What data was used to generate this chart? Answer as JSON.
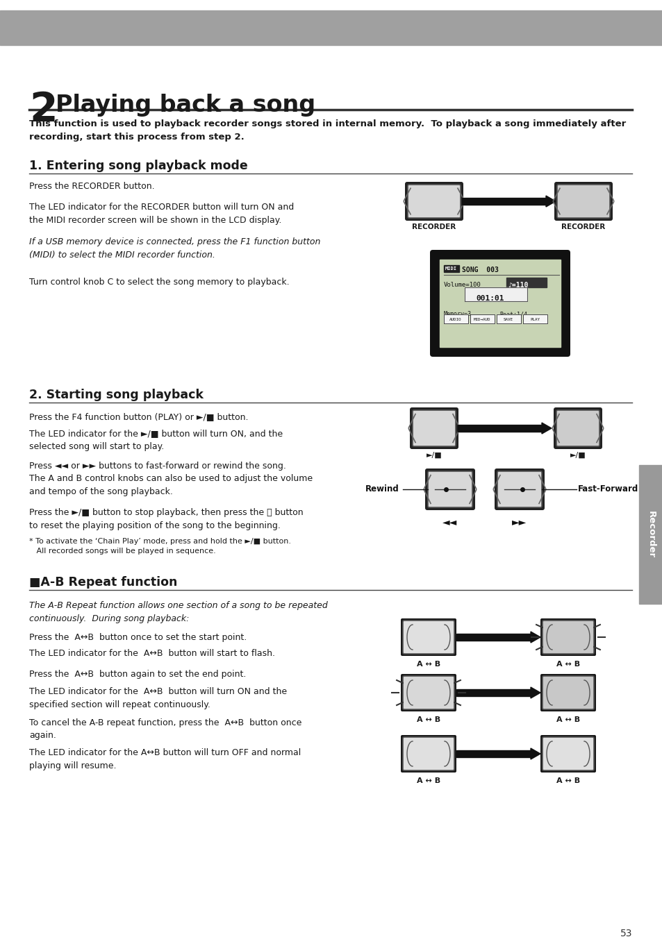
{
  "bg_color": "#ffffff",
  "header_bar_color": "#a0a0a0",
  "title_number": "2",
  "title_text": " Playing back a song",
  "title_underline_color": "#333333",
  "intro_text": "This function is used to playback recorder songs stored in internal memory.  To playback a song immediately after\nrecording, start this process from step 2.",
  "section1_title": "1. Entering song playback mode",
  "section1_p1": "Press the RECORDER button.",
  "section1_p2": "The LED indicator for the RECORDER button will turn ON and\nthe MIDI recorder screen will be shown in the LCD display.",
  "section1_p3_italic": "If a USB memory device is connected, press the F1 function button\n(MIDI) to select the MIDI recorder function.",
  "section1_p4": "Turn control knob C to select the song memory to playback.",
  "section2_title": "2. Starting song playback",
  "section2_p1": "Press the F4 function button (PLAY) or ►/■ button.",
  "section2_p2": "The LED indicator for the ►/■ button will turn ON, and the\nselected song will start to play.",
  "section2_p3": "Press ◄◄ or ►► buttons to fast-forward or rewind the song.\nThe A and B control knobs can also be used to adjust the volume\nand tempo of the song playback.",
  "section2_p4": "Press the ►/■ button to stop playback, then press the ⏮ button\nto reset the playing position of the song to the beginning.",
  "section2_note": "* To activate the ‘Chain Play’ mode, press and hold the ►/■ button.\n   All recorded songs will be played in sequence.",
  "section3_title": "■A-B Repeat function",
  "section3_p1_italic": "The A-B Repeat function allows one section of a song to be repeated\ncontinuously.  During song playback:",
  "section3_p2": "Press the  A↔B  button once to set the start point.",
  "section3_p3": "The LED indicator for the  A↔B  button will start to flash.",
  "section3_p4": "Press the  A↔B  button again to set the end point.",
  "section3_p5": "The LED indicator for the  A↔B  button will turn ON and the\nspecified section will repeat continuously.",
  "section3_p6": "To cancel the A-B repeat function, press the  A↔B  button once\nagain.",
  "section3_p7": "The LED indicator for the A↔B button will turn OFF and normal\nplaying will resume.",
  "page_number": "53",
  "sidebar_label": "Recorder",
  "sidebar_color": "#999999"
}
